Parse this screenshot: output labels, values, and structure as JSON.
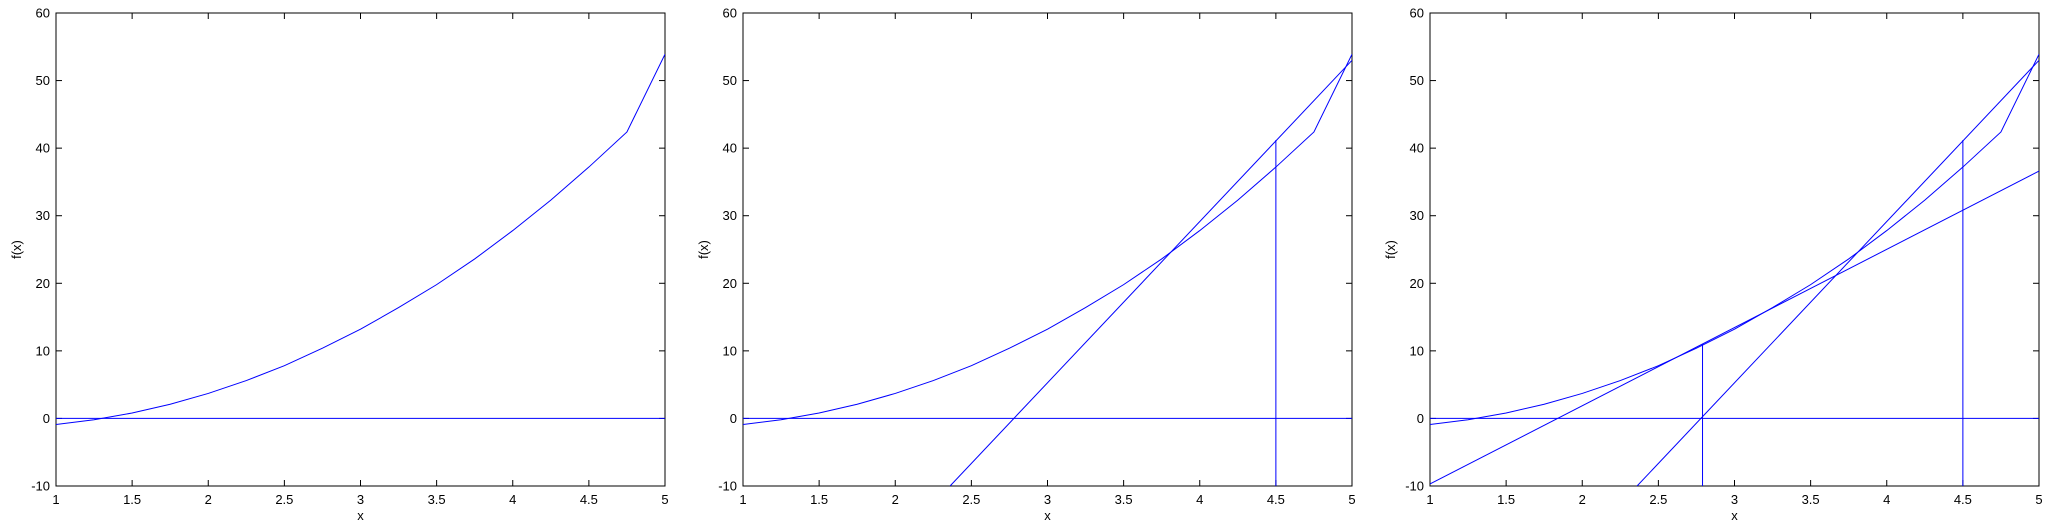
{
  "chart_data": [
    {
      "type": "line",
      "xlabel": "x",
      "ylabel": "f(x)",
      "xlim": [
        1,
        5
      ],
      "ylim": [
        -10,
        60
      ],
      "xticks": [
        "1",
        "1.5",
        "2",
        "2.5",
        "3",
        "3.5",
        "4",
        "4.5",
        "5"
      ],
      "yticks": [
        "-10",
        "0",
        "10",
        "20",
        "30",
        "40",
        "50",
        "60"
      ],
      "line_color": "#0000ff",
      "series": [
        {
          "kind": "curve",
          "x": [
            1,
            1.25,
            1.5,
            1.75,
            2,
            2.25,
            2.5,
            2.75,
            3,
            3.25,
            3.5,
            3.75,
            4,
            4.25,
            4.5,
            4.75,
            5
          ],
          "y": [
            -0.9,
            -0.2,
            0.8,
            2.1,
            3.7,
            5.6,
            7.8,
            10.4,
            13.2,
            16.4,
            19.8,
            23.6,
            27.8,
            32.3,
            37.2,
            42.4,
            53.9
          ]
        },
        {
          "kind": "zero-line",
          "x": [
            1,
            5
          ],
          "y": [
            0,
            0
          ]
        }
      ]
    },
    {
      "type": "line",
      "xlabel": "x",
      "ylabel": "f(x)",
      "xlim": [
        1,
        5
      ],
      "ylim": [
        -10,
        60
      ],
      "xticks": [
        "1",
        "1.5",
        "2",
        "2.5",
        "3",
        "3.5",
        "4",
        "4.5",
        "5"
      ],
      "yticks": [
        "-10",
        "0",
        "10",
        "20",
        "30",
        "40",
        "50",
        "60"
      ],
      "line_color": "#0000ff",
      "series": [
        {
          "kind": "curve",
          "x": [
            1,
            1.25,
            1.5,
            1.75,
            2,
            2.25,
            2.5,
            2.75,
            3,
            3.25,
            3.5,
            3.75,
            4,
            4.25,
            4.5,
            4.75,
            5
          ],
          "y": [
            -0.9,
            -0.2,
            0.8,
            2.1,
            3.7,
            5.6,
            7.8,
            10.4,
            13.2,
            16.4,
            19.8,
            23.6,
            27.8,
            32.3,
            37.2,
            42.4,
            53.9
          ]
        },
        {
          "kind": "zero-line",
          "x": [
            1,
            5
          ],
          "y": [
            0,
            0
          ]
        },
        {
          "kind": "tangent",
          "x": [
            2.36,
            5
          ],
          "y": [
            -10,
            53.0
          ]
        },
        {
          "kind": "vertical",
          "x": [
            4.5,
            4.5
          ],
          "y": [
            -10,
            41.2
          ]
        }
      ]
    },
    {
      "type": "line",
      "xlabel": "x",
      "ylabel": "f(x)",
      "xlim": [
        1,
        5
      ],
      "ylim": [
        -10,
        60
      ],
      "xticks": [
        "1",
        "1.5",
        "2",
        "2.5",
        "3",
        "3.5",
        "4",
        "4.5",
        "5"
      ],
      "yticks": [
        "-10",
        "0",
        "10",
        "20",
        "30",
        "40",
        "50",
        "60"
      ],
      "line_color": "#0000ff",
      "series": [
        {
          "kind": "curve",
          "x": [
            1,
            1.25,
            1.5,
            1.75,
            2,
            2.25,
            2.5,
            2.75,
            3,
            3.25,
            3.5,
            3.75,
            4,
            4.25,
            4.5,
            4.75,
            5
          ],
          "y": [
            -0.9,
            -0.2,
            0.8,
            2.1,
            3.7,
            5.6,
            7.8,
            10.4,
            13.2,
            16.4,
            19.8,
            23.6,
            27.8,
            32.3,
            37.2,
            42.4,
            53.9
          ]
        },
        {
          "kind": "zero-line",
          "x": [
            1,
            5
          ],
          "y": [
            0,
            0
          ]
        },
        {
          "kind": "tangent",
          "x": [
            2.36,
            5
          ],
          "y": [
            -10,
            53.0
          ]
        },
        {
          "kind": "vertical",
          "x": [
            4.5,
            4.5
          ],
          "y": [
            -10,
            41.2
          ]
        },
        {
          "kind": "tangent",
          "x": [
            1,
            5
          ],
          "y": [
            -9.7,
            36.6
          ]
        },
        {
          "kind": "vertical",
          "x": [
            2.79,
            2.79
          ],
          "y": [
            -10,
            11.0
          ]
        }
      ]
    }
  ]
}
